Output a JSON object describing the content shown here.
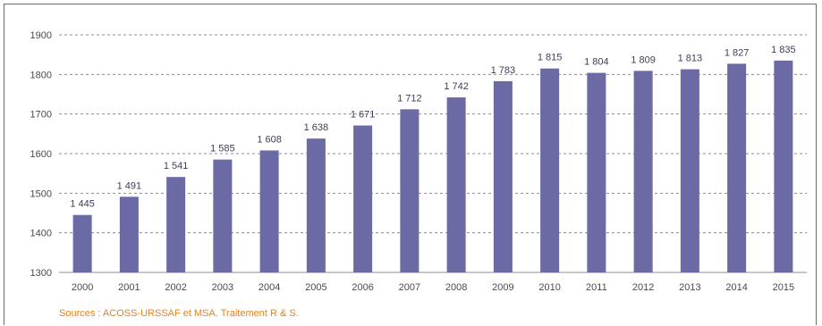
{
  "chart_data": {
    "type": "bar",
    "title": "",
    "xlabel": "",
    "ylabel": "",
    "categories": [
      "2000",
      "2001",
      "2002",
      "2003",
      "2004",
      "2005",
      "2006",
      "2007",
      "2008",
      "2009",
      "2010",
      "2011",
      "2012",
      "2013",
      "2014",
      "2015"
    ],
    "values": [
      1445,
      1491,
      1541,
      1585,
      1608,
      1638,
      1671,
      1712,
      1742,
      1783,
      1815,
      1804,
      1809,
      1813,
      1827,
      1835
    ],
    "data_labels": [
      "1 445",
      "1 491",
      "1 541",
      "1 585",
      "1 608",
      "1 638",
      "1 671",
      "1 712",
      "1 742",
      "1 783",
      "1 815",
      "1 804",
      "1 809",
      "1 813",
      "1 827",
      "1 835"
    ],
    "ylim": [
      1300,
      1900
    ],
    "yticks": [
      1300,
      1400,
      1500,
      1600,
      1700,
      1800,
      1900
    ],
    "grid": true,
    "bar_color": "#6b6aa5",
    "grid_color": "#8c8c8c"
  },
  "source_note": "Sources : ACOSS-URSSAF et MSA. Traitement R & S.",
  "source_color": "#e4821f"
}
